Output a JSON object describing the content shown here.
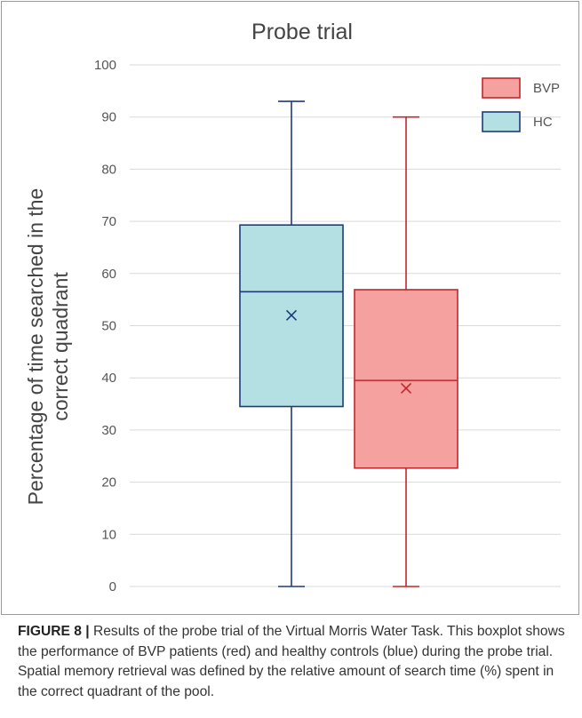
{
  "chart_data": {
    "type": "box",
    "title": "Probe trial",
    "xlabel": "",
    "ylabel": "Percentage of time searched in the correct quadrant",
    "ylabel_lines": [
      "Percentage of time searched in the",
      "correct quadrant"
    ],
    "ylim": [
      0,
      100
    ],
    "yticks": [
      0,
      10,
      20,
      30,
      40,
      50,
      60,
      70,
      80,
      90,
      100
    ],
    "grid": true,
    "legend_position": "top-right",
    "series": [
      {
        "name": "HC",
        "min": 0,
        "q1": 34.5,
        "median": 56.5,
        "q3": 69.3,
        "max": 93,
        "mean": 52,
        "fill": "#b4e0e4",
        "stroke": "#1f3a7a"
      },
      {
        "name": "BVP",
        "min": 0,
        "q1": 22.7,
        "median": 39.5,
        "q3": 56.9,
        "max": 90,
        "mean": 38,
        "fill": "#f4a19f",
        "stroke": "#c0282d"
      }
    ],
    "legend_order": [
      "BVP",
      "HC"
    ]
  },
  "caption": {
    "label": "FIGURE 8 |",
    "text": " Results of the probe trial of the Virtual Morris Water Task. This boxplot shows the performance of BVP patients (red) and healthy controls (blue) during the probe trial. Spatial memory retrieval was defined by the relative amount of search time (%) spent in the correct quadrant of the pool."
  }
}
